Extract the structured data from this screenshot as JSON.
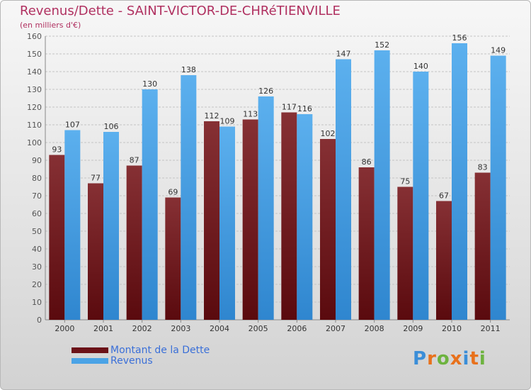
{
  "chart_data": {
    "type": "bar",
    "title": "Revenus/Dette - SAINT-VICTOR-DE-CHRéTIENVILLE",
    "subtitle": "(en milliers d'€)",
    "categories": [
      "2000",
      "2001",
      "2002",
      "2003",
      "2004",
      "2005",
      "2006",
      "2007",
      "2008",
      "2009",
      "2010",
      "2011"
    ],
    "series": [
      {
        "name": "Montant de la Dette",
        "values": [
          93,
          77,
          87,
          69,
          112,
          113,
          117,
          102,
          86,
          75,
          67,
          83
        ],
        "color": "#7a1f24"
      },
      {
        "name": "Revenus",
        "values": [
          107,
          106,
          130,
          138,
          109,
          126,
          116,
          147,
          152,
          140,
          156,
          149
        ],
        "color": "#4aa3e6"
      }
    ],
    "ylim": [
      0,
      160
    ],
    "yticks": [
      0,
      10,
      20,
      30,
      40,
      50,
      60,
      70,
      80,
      90,
      100,
      110,
      120,
      130,
      140,
      150,
      160
    ],
    "grid": true,
    "legend_position": "bottom-left"
  },
  "logo": {
    "letters": [
      "P",
      "r",
      "o",
      "x",
      "i",
      "t",
      "i"
    ],
    "colors": [
      "#3b8ed8",
      "#e8711c",
      "#6db33f",
      "#e8711c",
      "#3b8ed8",
      "#e8711c",
      "#6db33f"
    ]
  }
}
